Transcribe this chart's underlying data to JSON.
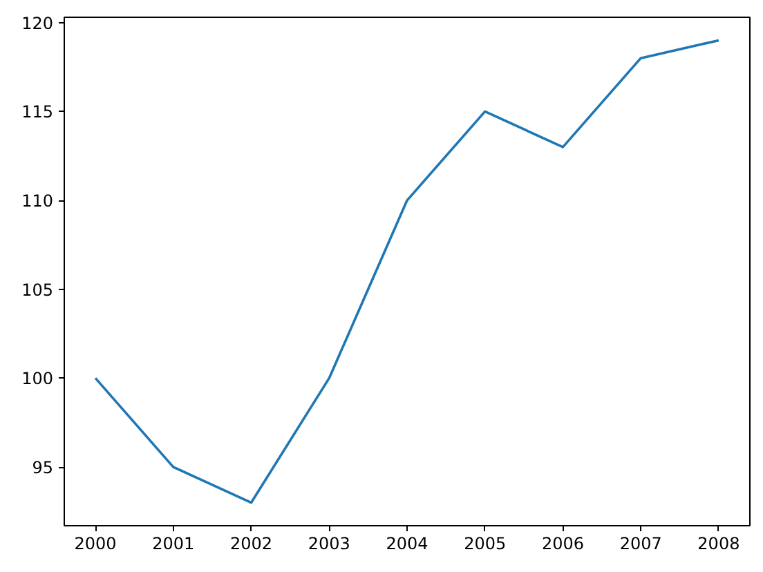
{
  "chart_data": {
    "type": "line",
    "x": [
      2000,
      2001,
      2002,
      2003,
      2004,
      2005,
      2006,
      2007,
      2008
    ],
    "series": [
      {
        "color": "#1f77b4",
        "values": [
          100,
          95,
          93,
          100,
          110,
          115,
          113,
          118,
          119
        ]
      }
    ],
    "xlim": [
      1999.6,
      2008.4
    ],
    "ylim": [
      91.7,
      120.3
    ],
    "xticks": [
      2000,
      2001,
      2002,
      2003,
      2004,
      2005,
      2006,
      2007,
      2008
    ],
    "yticks": [
      95,
      100,
      105,
      110,
      115,
      120
    ],
    "grid": false
  }
}
